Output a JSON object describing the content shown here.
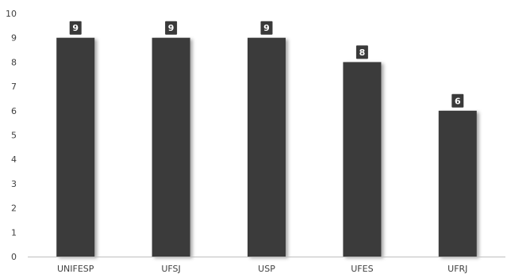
{
  "chart_data": {
    "type": "bar",
    "title": "",
    "xlabel": "",
    "ylabel": "",
    "categories": [
      "UNIFESP",
      "UFSJ",
      "USP",
      "UFES",
      "UFRJ"
    ],
    "values": [
      9,
      9,
      9,
      8,
      6
    ],
    "data_labels": [
      "9",
      "9",
      "9",
      "8",
      "6"
    ],
    "ylim": [
      0,
      10
    ],
    "yticks": [
      "0",
      "1",
      "2",
      "3",
      "4",
      "5",
      "6",
      "7",
      "8",
      "9",
      "10"
    ],
    "grid": false,
    "legend": "none",
    "colors": {
      "bar": "#3a3a3a",
      "label_box": "#3a3a3a",
      "axis": "#bfbfbf",
      "text": "#404040"
    }
  }
}
